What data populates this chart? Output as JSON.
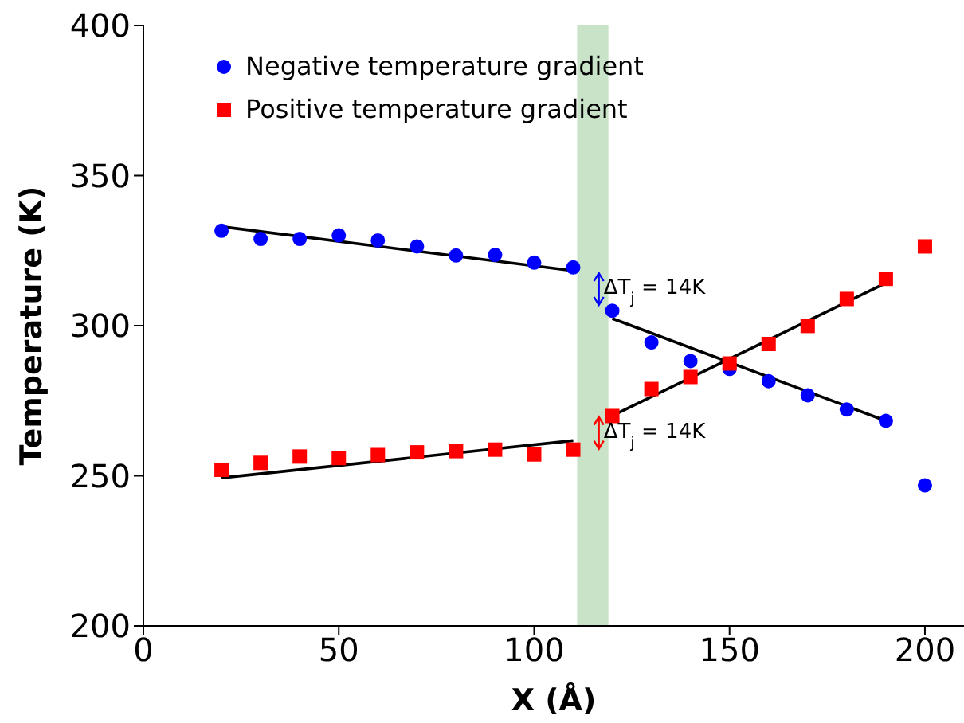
{
  "chart_data": {
    "type": "scatter",
    "xlabel": "X (Å)",
    "ylabel": "Temperature (K)",
    "xlim": [
      0,
      210
    ],
    "xticks": [
      0,
      50,
      100,
      150,
      200
    ],
    "ylim": [
      200,
      400
    ],
    "yticks": [
      200,
      250,
      300,
      350,
      400
    ],
    "legend": "top left",
    "x": [
      20,
      30,
      40,
      50,
      60,
      70,
      80,
      90,
      100,
      110,
      120,
      130,
      140,
      150,
      160,
      170,
      180,
      190,
      200
    ],
    "series": [
      {
        "name": "Negative temperature gradient",
        "color": "#0000ff",
        "marker": "circle",
        "values": [
          331.6,
          328.9,
          328.9,
          330.1,
          328.4,
          326.4,
          323.4,
          323.6,
          321,
          319.4,
          305,
          294.4,
          288.2,
          285.6,
          281.5,
          276.8,
          272.1,
          268.3,
          246.8
        ]
      },
      {
        "name": "Positive temperature gradient",
        "color": "#ff0000",
        "marker": "square",
        "values": [
          252,
          254.3,
          256.4,
          255.9,
          256.9,
          257.8,
          258.2,
          258.7,
          257.1,
          258.7,
          269.9,
          278.9,
          282.9,
          287.4,
          293.9,
          299.9,
          308.9,
          315.6,
          326.4
        ]
      },
      {
        "type": "line",
        "color": "#000000",
        "x": [
          20,
          110
        ],
        "values": [
          333,
          318.3
        ]
      },
      {
        "type": "line",
        "color": "#000000",
        "x": [
          120,
          190
        ],
        "values": [
          302.4,
          268.3
        ]
      },
      {
        "type": "line",
        "color": "#000000",
        "x": [
          20,
          110
        ],
        "values": [
          249.3,
          261.7
        ]
      },
      {
        "type": "line",
        "color": "#000000",
        "x": [
          120,
          190
        ],
        "values": [
          270,
          314.2
        ]
      }
    ],
    "bands": [
      {
        "axis": "x",
        "from": 111,
        "to": 119,
        "color": "#c8e3c8"
      }
    ],
    "annotations": [
      "ΔT$_{j}$ = 14K",
      "ΔT$_{j}$ = 14K"
    ]
  }
}
